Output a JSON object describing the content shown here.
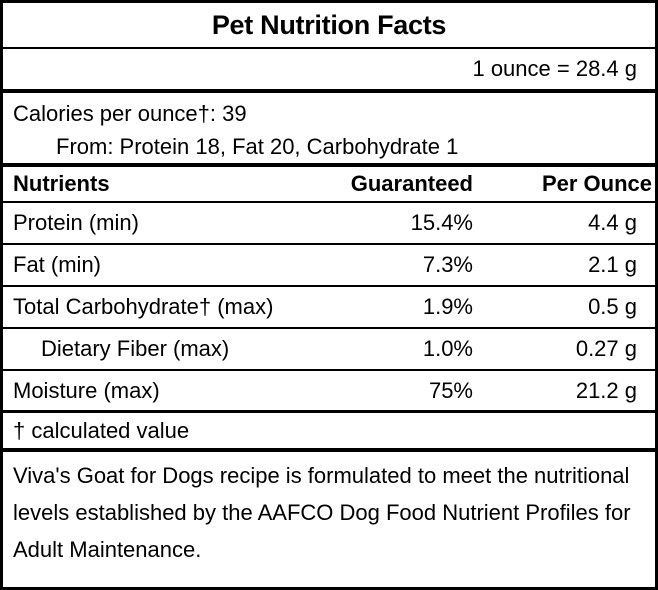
{
  "label": {
    "title": "Pet Nutrition Facts",
    "serving_equivalence": "1 ounce = 28.4 g",
    "calories": {
      "per_ounce_line": "Calories per ounce†: 39",
      "from_line": "From: Protein 18, Fat 20, Carbohydrate 1"
    },
    "table": {
      "headers": {
        "nutrients": "Nutrients",
        "guaranteed": "Guaranteed",
        "per_ounce": "Per Ounce"
      },
      "rows": [
        {
          "nutrient": "Protein (min)",
          "guaranteed": "15.4%",
          "per_ounce": "4.4 g"
        },
        {
          "nutrient": "Fat (min)",
          "guaranteed": "7.3%",
          "per_ounce": "2.1 g"
        },
        {
          "nutrient": "Total Carbohydrate† (max)",
          "guaranteed": "1.9%",
          "per_ounce": "0.5 g"
        },
        {
          "nutrient": "Dietary Fiber (max)",
          "guaranteed": "1.0%",
          "per_ounce": "0.27 g"
        },
        {
          "nutrient": "Moisture (max)",
          "guaranteed": "75%",
          "per_ounce": "21.2 g"
        }
      ]
    },
    "footnote": "† calculated value",
    "aafco_statement": "Viva's Goat for Dogs recipe is formulated to meet the nutritional levels established by the AAFCO Dog Food Nutrient Profiles for Adult Maintenance.",
    "colors": {
      "text": "#000000",
      "background": "#ffffff",
      "border": "#000000"
    }
  }
}
